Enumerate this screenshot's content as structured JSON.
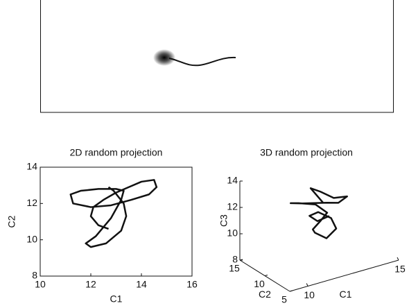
{
  "chart_data": [
    {
      "type": "line",
      "title": "2D random projection",
      "xlabel": "C1",
      "ylabel": "C2",
      "xlim": [
        10,
        16
      ],
      "ylim": [
        8,
        14
      ],
      "xticks": [
        10,
        12,
        14,
        16
      ],
      "yticks": [
        8,
        10,
        12,
        14
      ],
      "series": [
        {
          "color": "#111111",
          "x": [
            12.7,
            12.3,
            12.0,
            12.1,
            12.5,
            13.0,
            13.5,
            14.0,
            14.5,
            14.6,
            14.3,
            13.6,
            12.8,
            12.0,
            11.3,
            11.2,
            11.6,
            12.3,
            13.0,
            13.3,
            13.2,
            12.8,
            12.2,
            11.8,
            12.0,
            12.6,
            13.2,
            13.4,
            13.3,
            12.9,
            12.7
          ],
          "y": [
            10.6,
            10.8,
            11.3,
            11.8,
            12.2,
            12.6,
            12.9,
            13.2,
            13.3,
            12.9,
            12.5,
            12.2,
            11.9,
            11.8,
            12.0,
            12.5,
            12.7,
            12.8,
            12.8,
            12.7,
            12.2,
            11.2,
            10.2,
            9.8,
            9.6,
            9.8,
            10.5,
            11.3,
            12.0,
            12.7,
            12.9
          ]
        }
      ]
    },
    {
      "type": "line3d",
      "title": "3D random projection",
      "xlabel": "C1",
      "ylabel": "C2",
      "zlabel": "C3",
      "xlim": [
        9,
        15
      ],
      "ylim": [
        5,
        15
      ],
      "zlim": [
        8,
        14
      ],
      "xticks": [
        10,
        15
      ],
      "yticks": [
        5,
        10,
        15
      ],
      "zticks": [
        8,
        10,
        12,
        14
      ],
      "series": [
        {
          "color": "#111111",
          "x": [
            12.2,
            12.0,
            11.8,
            12.2,
            12.8,
            13.4,
            13.0,
            12.4,
            11.2,
            10.7,
            11.0,
            11.8,
            12.3,
            12.0,
            11.7,
            11.9,
            12.4,
            12.8,
            12.6,
            12.0,
            11.6,
            11.9,
            12.5
          ],
          "y": [
            10,
            10.5,
            11,
            10.5,
            10,
            9.5,
            9.8,
            10,
            10.5,
            11,
            10.5,
            10,
            9.5,
            9.8,
            10.2,
            10.5,
            10,
            9.5,
            9.8,
            10.2,
            10.5,
            10,
            9.8
          ],
          "z": [
            12.3,
            12.8,
            13.3,
            13.0,
            12.4,
            12.4,
            12.0,
            12.2,
            12.5,
            12.6,
            12.6,
            12.3,
            11.6,
            11.0,
            10.4,
            10.0,
            9.5,
            10.2,
            11.0,
            11.6,
            11.4,
            11.0,
            11.2
          ]
        }
      ]
    }
  ]
}
